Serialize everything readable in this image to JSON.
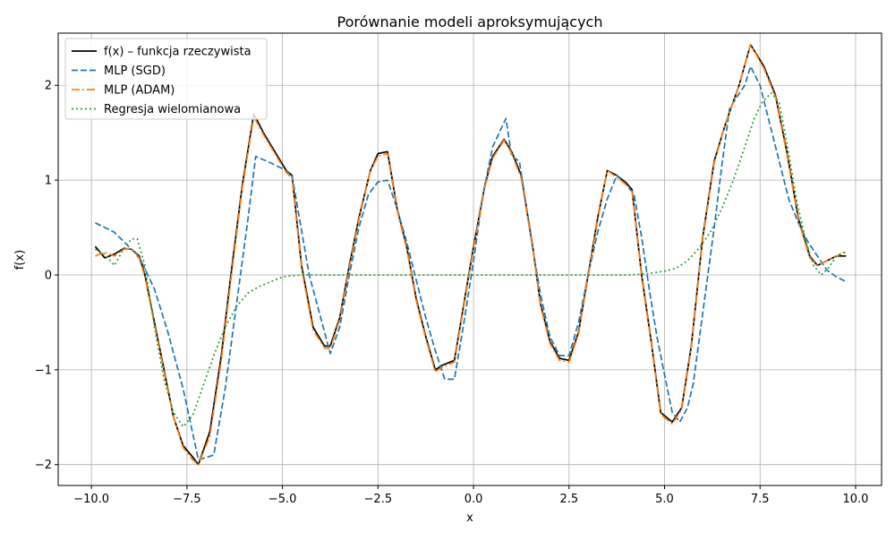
{
  "chart_data": {
    "type": "line",
    "title": "Porównanie modeli aproksymujących",
    "xlabel": "x",
    "ylabel": "f(x)",
    "xlim": [
      -10.87,
      10.68
    ],
    "ylim": [
      -2.22,
      2.55
    ],
    "xticks": [
      -10.0,
      -7.5,
      -5.0,
      -2.5,
      0.0,
      2.5,
      5.0,
      7.5,
      10.0
    ],
    "xtick_labels": [
      "−10.0",
      "−7.5",
      "−5.0",
      "−2.5",
      "0.0",
      "2.5",
      "5.0",
      "7.5",
      "10.0"
    ],
    "yticks": [
      -2,
      -1,
      0,
      1,
      2
    ],
    "ytick_labels": [
      "−2",
      "−1",
      "0",
      "1",
      "2"
    ],
    "grid": true,
    "legend_position": "upper-left",
    "series": [
      {
        "name": "f(x) – funkcja rzeczywista",
        "color": "#000000",
        "style": "solid",
        "x": [
          -9.9,
          -9.65,
          -9.4,
          -9.15,
          -8.95,
          -8.75,
          -8.6,
          -8.35,
          -8.1,
          -7.85,
          -7.6,
          -7.35,
          -7.2,
          -6.9,
          -6.6,
          -6.35,
          -6.05,
          -5.75,
          -5.5,
          -5.2,
          -4.9,
          -4.75,
          -4.5,
          -4.2,
          -3.9,
          -3.75,
          -3.5,
          -3.25,
          -3.0,
          -2.7,
          -2.5,
          -2.25,
          -2.0,
          -1.75,
          -1.5,
          -1.25,
          -1.0,
          -0.8,
          -0.5,
          -0.25,
          0.0,
          0.3,
          0.5,
          0.8,
          1.0,
          1.25,
          1.55,
          1.75,
          2.0,
          2.25,
          2.5,
          2.75,
          3.0,
          3.25,
          3.5,
          3.75,
          4.0,
          4.15,
          4.4,
          4.65,
          4.9,
          5.2,
          5.45,
          5.7,
          6.0,
          6.3,
          6.6,
          6.95,
          7.25,
          7.6,
          7.9,
          8.2,
          8.5,
          8.8,
          9.0,
          9.25,
          9.5,
          9.75
        ],
        "y": [
          0.3,
          0.18,
          0.22,
          0.28,
          0.27,
          0.2,
          0.0,
          -0.5,
          -1.0,
          -1.5,
          -1.8,
          -1.92,
          -2.0,
          -1.65,
          -0.85,
          0.0,
          0.95,
          1.7,
          1.5,
          1.3,
          1.1,
          1.05,
          0.1,
          -0.55,
          -0.75,
          -0.75,
          -0.45,
          0.1,
          0.6,
          1.1,
          1.28,
          1.3,
          0.7,
          0.3,
          -0.25,
          -0.65,
          -1.0,
          -0.95,
          -0.9,
          -0.3,
          0.3,
          0.95,
          1.25,
          1.43,
          1.3,
          1.05,
          0.3,
          -0.3,
          -0.7,
          -0.88,
          -0.9,
          -0.6,
          0.0,
          0.6,
          1.1,
          1.05,
          0.97,
          0.9,
          0.0,
          -0.7,
          -1.45,
          -1.55,
          -1.4,
          -0.75,
          0.4,
          1.2,
          1.6,
          2.0,
          2.43,
          2.2,
          1.9,
          1.3,
          0.6,
          0.2,
          0.1,
          0.15,
          0.2,
          0.2
        ]
      },
      {
        "name": "MLP (SGD)",
        "color": "#1f77b4",
        "style": "dashed",
        "x": [
          -9.9,
          -9.4,
          -9.15,
          -8.9,
          -8.7,
          -8.35,
          -8.0,
          -7.6,
          -7.2,
          -6.8,
          -6.5,
          -6.2,
          -5.9,
          -5.7,
          -5.3,
          -5.0,
          -4.75,
          -4.3,
          -4.0,
          -3.75,
          -3.5,
          -3.25,
          -3.0,
          -2.75,
          -2.5,
          -2.25,
          -2.0,
          -1.75,
          -1.5,
          -1.25,
          -1.0,
          -0.75,
          -0.5,
          -0.25,
          0.0,
          0.25,
          0.5,
          0.85,
          1.0,
          1.2,
          1.5,
          1.75,
          2.0,
          2.25,
          2.5,
          2.75,
          3.0,
          3.25,
          3.5,
          3.75,
          4.0,
          4.2,
          4.4,
          4.6,
          4.8,
          5.0,
          5.2,
          5.4,
          5.6,
          5.75,
          6.0,
          6.3,
          6.5,
          6.7,
          6.9,
          7.1,
          7.25,
          7.5,
          7.75,
          8.0,
          8.25,
          8.5,
          8.75,
          9.0,
          9.25,
          9.5,
          9.75
        ],
        "y": [
          0.55,
          0.45,
          0.35,
          0.25,
          0.15,
          -0.15,
          -0.6,
          -1.2,
          -1.95,
          -1.9,
          -1.2,
          -0.3,
          0.6,
          1.25,
          1.18,
          1.12,
          1.05,
          0.0,
          -0.45,
          -0.83,
          -0.55,
          0.0,
          0.5,
          0.85,
          0.98,
          1.0,
          0.7,
          0.35,
          -0.05,
          -0.45,
          -0.8,
          -1.1,
          -1.1,
          -0.5,
          0.15,
          0.85,
          1.35,
          1.65,
          1.25,
          1.2,
          0.4,
          -0.2,
          -0.65,
          -0.85,
          -0.85,
          -0.5,
          0.0,
          0.45,
          0.8,
          1.05,
          0.95,
          0.85,
          0.4,
          -0.15,
          -0.65,
          -1.05,
          -1.45,
          -1.55,
          -1.4,
          -1.15,
          -0.4,
          0.5,
          1.15,
          1.75,
          1.88,
          2.0,
          2.2,
          2.0,
          1.6,
          1.2,
          0.8,
          0.55,
          0.35,
          0.2,
          0.05,
          -0.02,
          -0.07
        ]
      },
      {
        "name": "MLP (ADAM)",
        "color": "#ff7f0e",
        "style": "dashdot",
        "x": [
          -9.9,
          -9.65,
          -9.4,
          -9.15,
          -8.95,
          -8.75,
          -8.6,
          -8.35,
          -8.1,
          -7.85,
          -7.6,
          -7.35,
          -7.2,
          -6.9,
          -6.6,
          -6.35,
          -6.05,
          -5.75,
          -5.5,
          -5.2,
          -4.9,
          -4.75,
          -4.5,
          -4.2,
          -3.9,
          -3.75,
          -3.5,
          -3.25,
          -3.0,
          -2.7,
          -2.5,
          -2.25,
          -2.0,
          -1.75,
          -1.5,
          -1.25,
          -1.0,
          -0.8,
          -0.5,
          -0.25,
          0.0,
          0.3,
          0.5,
          0.8,
          1.0,
          1.25,
          1.55,
          1.75,
          2.0,
          2.25,
          2.5,
          2.75,
          3.0,
          3.25,
          3.5,
          3.75,
          4.0,
          4.15,
          4.4,
          4.65,
          4.9,
          5.2,
          5.45,
          5.7,
          6.0,
          6.3,
          6.6,
          6.95,
          7.25,
          7.6,
          7.9,
          8.2,
          8.5,
          8.8,
          9.0,
          9.25,
          9.5,
          9.75
        ],
        "y": [
          0.2,
          0.24,
          0.2,
          0.27,
          0.28,
          0.18,
          -0.02,
          -0.52,
          -1.02,
          -1.5,
          -1.82,
          -1.95,
          -2.0,
          -1.7,
          -0.9,
          -0.05,
          0.92,
          1.67,
          1.48,
          1.28,
          1.08,
          1.02,
          0.07,
          -0.58,
          -0.77,
          -0.78,
          -0.47,
          0.08,
          0.58,
          1.1,
          1.25,
          1.28,
          0.68,
          0.28,
          -0.27,
          -0.67,
          -1.02,
          -0.97,
          -0.92,
          -0.32,
          0.28,
          0.93,
          1.23,
          1.42,
          1.28,
          1.02,
          0.28,
          -0.32,
          -0.72,
          -0.9,
          -0.92,
          -0.62,
          -0.02,
          0.58,
          1.1,
          1.03,
          0.95,
          0.88,
          -0.02,
          -0.72,
          -1.47,
          -1.57,
          -1.42,
          -0.77,
          0.38,
          1.18,
          1.6,
          2.0,
          2.43,
          2.18,
          1.88,
          1.28,
          0.58,
          0.18,
          0.1,
          0.15,
          0.2,
          0.24
        ]
      },
      {
        "name": "Regresja wielomianowa",
        "color": "#2ca02c",
        "style": "dotted",
        "x": [
          -9.9,
          -9.65,
          -9.4,
          -9.15,
          -8.95,
          -8.8,
          -8.6,
          -8.35,
          -8.1,
          -7.85,
          -7.6,
          -7.35,
          -7.1,
          -6.8,
          -6.5,
          -6.2,
          -5.9,
          -5.6,
          -5.3,
          -5.0,
          -4.8,
          -4.5,
          -4.0,
          -3.0,
          -2.0,
          -1.0,
          0.0,
          1.0,
          2.0,
          3.0,
          4.0,
          4.5,
          5.0,
          5.3,
          5.6,
          5.9,
          6.2,
          6.5,
          6.8,
          7.1,
          7.35,
          7.55,
          7.8,
          8.0,
          8.2,
          8.45,
          8.7,
          8.9,
          9.1,
          9.3,
          9.5,
          9.75
        ],
        "y": [
          0.27,
          0.22,
          0.1,
          0.28,
          0.38,
          0.38,
          0.1,
          -0.55,
          -1.1,
          -1.45,
          -1.6,
          -1.48,
          -1.2,
          -0.85,
          -0.55,
          -0.33,
          -0.19,
          -0.12,
          -0.07,
          -0.02,
          -0.01,
          0.0,
          0.0,
          0.0,
          0.0,
          0.0,
          0.0,
          0.0,
          0.0,
          0.0,
          0.0,
          0.01,
          0.04,
          0.07,
          0.15,
          0.28,
          0.45,
          0.7,
          1.0,
          1.35,
          1.65,
          1.82,
          1.92,
          1.82,
          1.4,
          0.8,
          0.35,
          0.1,
          0.0,
          0.08,
          0.2,
          0.25
        ]
      }
    ]
  }
}
